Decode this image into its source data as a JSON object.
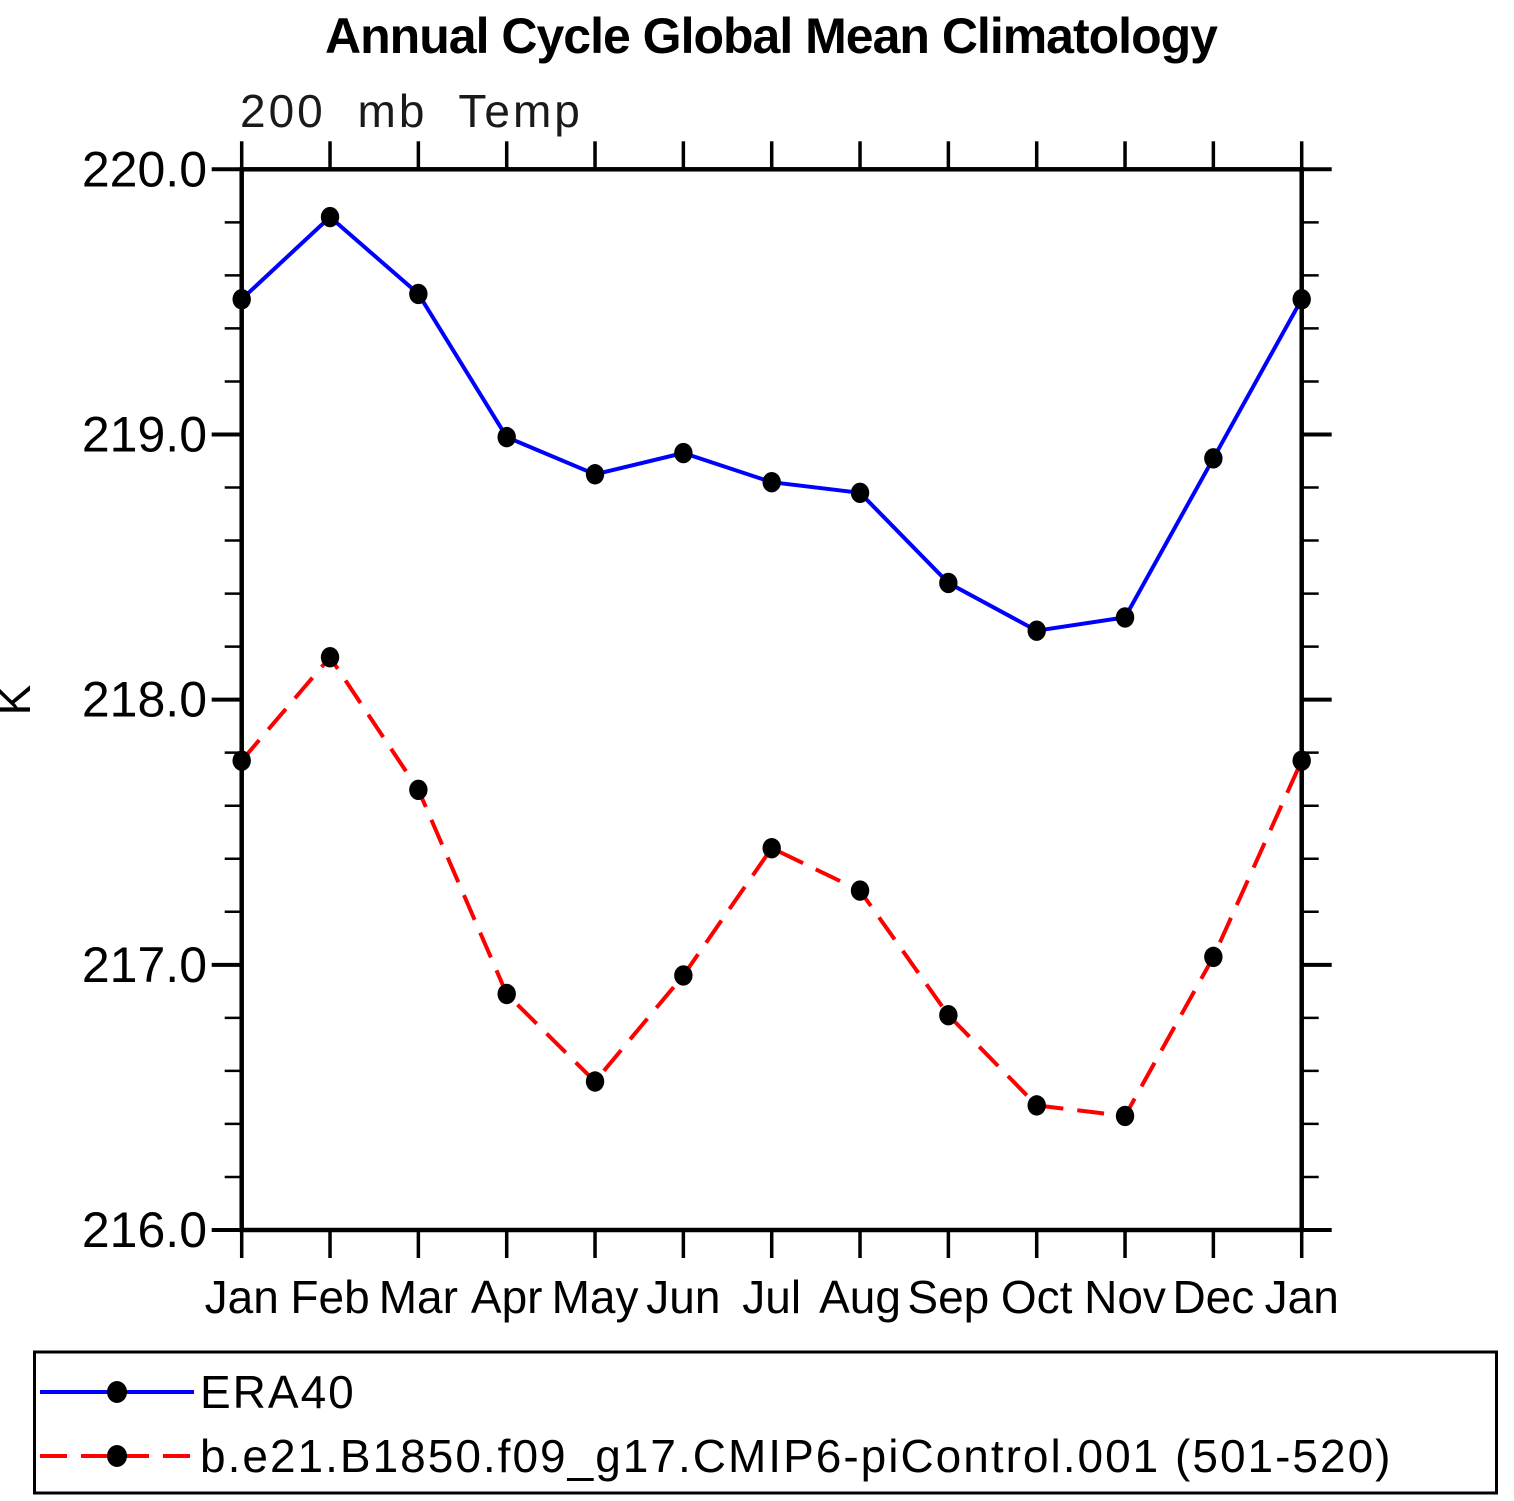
{
  "title": "Annual Cycle Global Mean Climatology",
  "subtitle": "200 mb Temp",
  "ylabel": "K",
  "axis_color": "#000000",
  "marker_color": "#000000",
  "chart_data": {
    "type": "line",
    "title": "Annual Cycle Global Mean Climatology",
    "subtitle": "200 mb Temp",
    "xlabel": "",
    "ylabel": "K",
    "ylim": [
      216.0,
      220.0
    ],
    "ytick_interval": 1.0,
    "yminor_interval": 0.2,
    "ytick_labels": [
      "220.0",
      "219.0",
      "218.0",
      "217.0",
      "216.0"
    ],
    "grid": false,
    "legend_position": "bottom",
    "categories": [
      "Jan",
      "Feb",
      "Mar",
      "Apr",
      "May",
      "Jun",
      "Jul",
      "Aug",
      "Sep",
      "Oct",
      "Nov",
      "Dec",
      "Jan"
    ],
    "series": [
      {
        "name": "ERA40",
        "line_style": "solid",
        "color": "#0000ff",
        "marker": "filled-circle",
        "values": [
          219.51,
          219.82,
          219.53,
          218.99,
          218.85,
          218.93,
          218.82,
          218.78,
          218.44,
          218.26,
          218.31,
          218.91,
          219.51
        ]
      },
      {
        "name": "b.e21.B1850.f09_g17.CMIP6-piControl.001 (501-520)",
        "line_style": "dashed",
        "color": "#ff0000",
        "marker": "filled-circle",
        "values": [
          217.77,
          218.16,
          217.66,
          216.89,
          216.56,
          216.96,
          217.44,
          217.28,
          216.81,
          216.47,
          216.43,
          217.03,
          217.77
        ]
      }
    ]
  }
}
